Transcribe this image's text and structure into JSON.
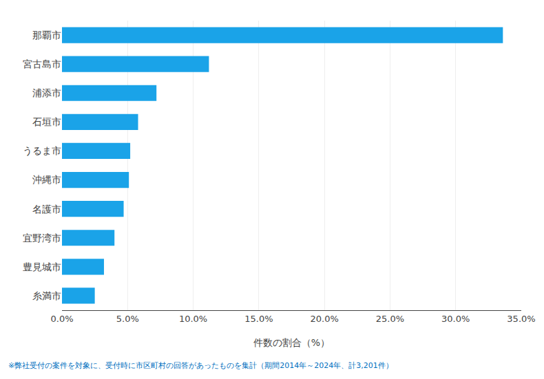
{
  "chart_data": {
    "type": "bar",
    "orientation": "horizontal",
    "categories": [
      "那覇市",
      "宮古島市",
      "浦添市",
      "石垣市",
      "うるま市",
      "沖縄市",
      "名護市",
      "宜野湾市",
      "豊見城市",
      "糸満市"
    ],
    "values": [
      33.6,
      11.2,
      7.2,
      5.8,
      5.2,
      5.1,
      4.7,
      4.0,
      3.2,
      2.5
    ],
    "color": "#1aa3e8",
    "xlabel": "件数の割合（%）",
    "xlim": [
      0,
      35.0
    ],
    "xticks": [
      {
        "value": 0,
        "label": "0.0%"
      },
      {
        "value": 5,
        "label": "5.0%"
      },
      {
        "value": 10,
        "label": "10.0%"
      },
      {
        "value": 15,
        "label": "15.0%"
      },
      {
        "value": 20,
        "label": "20.0%"
      },
      {
        "value": 25,
        "label": "25.0%"
      },
      {
        "value": 30,
        "label": "30.0%"
      },
      {
        "value": 35,
        "label": "35.0%"
      }
    ],
    "grid": true,
    "annotations": [
      "※弊社受付の案件を対象に、受付時に市区町村の回答があったものを集計（期間2014年～2024年、計3,201件）"
    ]
  }
}
